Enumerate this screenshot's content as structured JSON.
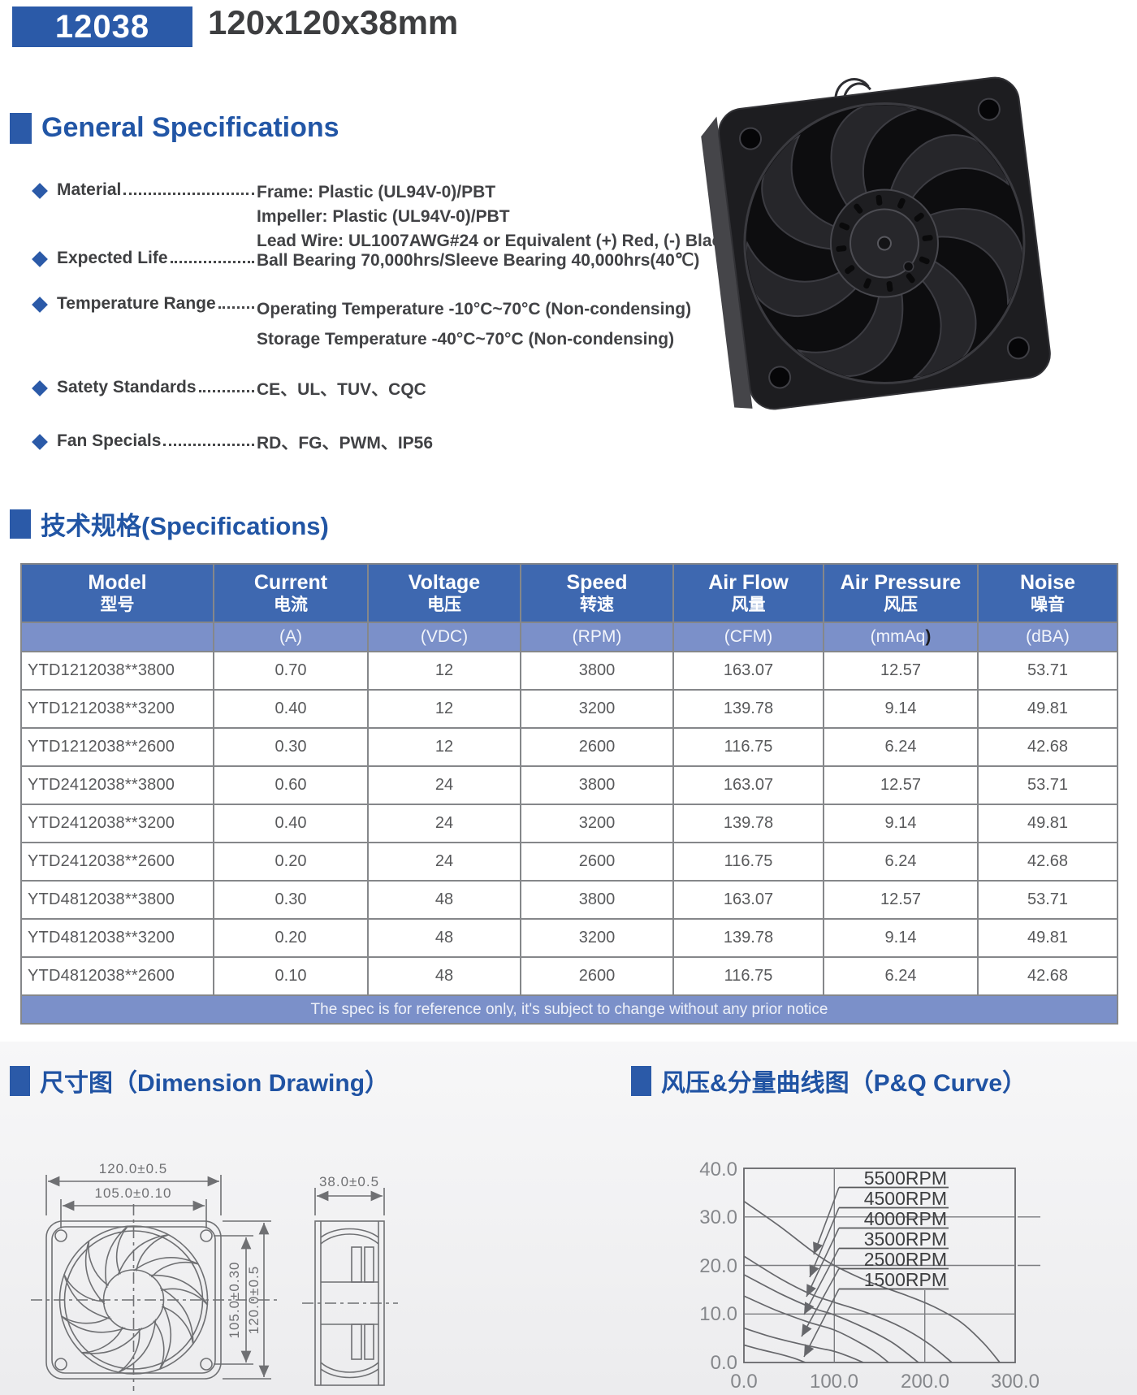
{
  "header": {
    "model_code": "12038",
    "size_label": "120x120x38mm"
  },
  "general_specifications": {
    "title": "General Specifications",
    "items": [
      {
        "label": "Material",
        "values": [
          "Frame: Plastic (UL94V-0)/PBT",
          "Impeller: Plastic (UL94V-0)/PBT",
          "Lead Wire: UL1007AWG#24 or Equivalent (+) Red, (-) Black"
        ]
      },
      {
        "label": "Expected Life",
        "values": [
          "Ball Bearing 70,000hrs/Sleeve Bearing 40,000hrs(40℃)"
        ]
      },
      {
        "label": "Temperature Range",
        "values": [
          "Operating Temperature -10°C~70°C (Non-condensing)",
          "Storage Temperature -40°C~70°C (Non-condensing)"
        ]
      },
      {
        "label": "Satety Standards",
        "values": [
          "CE、UL、TUV、CQC"
        ]
      },
      {
        "label": "Fan Specials",
        "values": [
          "RD、FG、PWM、IP56"
        ]
      }
    ]
  },
  "specifications": {
    "title": "技术规格(Specifications)",
    "keys": [
      "model",
      "current",
      "voltage",
      "speed",
      "airflow",
      "pressure",
      "noise"
    ],
    "columns": [
      {
        "en": "Model",
        "zh": "型号",
        "unit": ""
      },
      {
        "en": "Current",
        "zh": "电流",
        "unit": "(A)"
      },
      {
        "en": "Voltage",
        "zh": "电压",
        "unit": "(VDC)"
      },
      {
        "en": "Speed",
        "zh": "转速",
        "unit": "(RPM)"
      },
      {
        "en": "Air Flow",
        "zh": "风量",
        "unit": "(CFM)"
      },
      {
        "en": "Air Pressure",
        "zh": "风压",
        "unit": "(mmAq",
        "unit_close": ")"
      },
      {
        "en": "Noise",
        "zh": "噪音",
        "unit": "(dBA)"
      }
    ],
    "rows": [
      {
        "model": "YTD1212038**3800",
        "current": "0.70",
        "voltage": "12",
        "speed": "3800",
        "airflow": "163.07",
        "pressure": "12.57",
        "noise": "53.71"
      },
      {
        "model": "YTD1212038**3200",
        "current": "0.40",
        "voltage": "12",
        "speed": "3200",
        "airflow": "139.78",
        "pressure": "9.14",
        "noise": "49.81"
      },
      {
        "model": "YTD1212038**2600",
        "current": "0.30",
        "voltage": "12",
        "speed": "2600",
        "airflow": "116.75",
        "pressure": "6.24",
        "noise": "42.68"
      },
      {
        "model": "YTD2412038**3800",
        "current": "0.60",
        "voltage": "24",
        "speed": "3800",
        "airflow": "163.07",
        "pressure": "12.57",
        "noise": "53.71"
      },
      {
        "model": "YTD2412038**3200",
        "current": "0.40",
        "voltage": "24",
        "speed": "3200",
        "airflow": "139.78",
        "pressure": "9.14",
        "noise": "49.81"
      },
      {
        "model": "YTD2412038**2600",
        "current": "0.20",
        "voltage": "24",
        "speed": "2600",
        "airflow": "116.75",
        "pressure": "6.24",
        "noise": "42.68"
      },
      {
        "model": "YTD4812038**3800",
        "current": "0.30",
        "voltage": "48",
        "speed": "3800",
        "airflow": "163.07",
        "pressure": "12.57",
        "noise": "53.71"
      },
      {
        "model": "YTD4812038**3200",
        "current": "0.20",
        "voltage": "48",
        "speed": "3200",
        "airflow": "139.78",
        "pressure": "9.14",
        "noise": "49.81"
      },
      {
        "model": "YTD4812038**2600",
        "current": "0.10",
        "voltage": "48",
        "speed": "2600",
        "airflow": "116.75",
        "pressure": "6.24",
        "noise": "42.68"
      }
    ],
    "footnote": "The spec is for reference only, it's subject to change without any prior notice"
  },
  "dimension_drawing": {
    "title": "尺寸图（Dimension Drawing）",
    "labels": {
      "width": "120.0±0.5",
      "hole_pitch_h": "105.0±0.10",
      "hole_pitch_v": "105.0±0.30",
      "height": "120.0±0.5",
      "depth": "38.0±0.5"
    }
  },
  "pq_curve": {
    "title": "风压&分量曲线图（P&Q Curve）"
  },
  "chart_data": {
    "type": "line",
    "title": "P&Q Curve",
    "xlabel": "",
    "ylabel": "",
    "xlim": [
      0,
      300
    ],
    "ylim": [
      0,
      40
    ],
    "xticks": [
      "0.0",
      "100.0",
      "200.0",
      "300.0"
    ],
    "yticks": [
      "40.0",
      "30.0",
      "20.0",
      "10.0",
      "0.0"
    ],
    "grid": "partial",
    "legend_position": "inline-labels-top-right",
    "series": [
      {
        "name": "5500RPM",
        "points": [
          [
            0,
            33.2
          ],
          [
            40,
            28
          ],
          [
            75,
            23
          ],
          [
            100,
            20
          ],
          [
            140,
            16.5
          ],
          [
            180,
            13.8
          ],
          [
            210,
            11.5
          ],
          [
            240,
            8.3
          ],
          [
            265,
            4
          ],
          [
            283,
            0
          ]
        ]
      },
      {
        "name": "4500RPM",
        "points": [
          [
            0,
            21.9
          ],
          [
            40,
            17.3
          ],
          [
            75,
            14
          ],
          [
            100,
            12.4
          ],
          [
            140,
            10
          ],
          [
            175,
            7.2
          ],
          [
            205,
            3.8
          ],
          [
            230,
            0
          ]
        ]
      },
      {
        "name": "4000RPM",
        "points": [
          [
            0,
            18.1
          ],
          [
            40,
            14.2
          ],
          [
            75,
            11.3
          ],
          [
            100,
            9.8
          ],
          [
            135,
            7
          ],
          [
            165,
            4
          ],
          [
            193,
            0
          ]
        ]
      },
      {
        "name": "3500RPM",
        "points": [
          [
            0,
            13.7
          ],
          [
            35,
            10.8
          ],
          [
            70,
            8.4
          ],
          [
            100,
            6.7
          ],
          [
            125,
            4.4
          ],
          [
            145,
            2.2
          ],
          [
            160,
            0
          ]
        ]
      },
      {
        "name": "2500RPM",
        "points": [
          [
            0,
            7.1
          ],
          [
            30,
            5.3
          ],
          [
            60,
            3.9
          ],
          [
            85,
            2.9
          ],
          [
            100,
            2.3
          ],
          [
            118,
            1.1
          ],
          [
            132,
            0
          ]
        ]
      },
      {
        "name": "1500RPM",
        "points": [
          [
            0,
            3.6
          ],
          [
            20,
            2.6
          ],
          [
            40,
            1.7
          ],
          [
            55,
            0.9
          ],
          [
            68,
            0
          ]
        ]
      }
    ]
  }
}
